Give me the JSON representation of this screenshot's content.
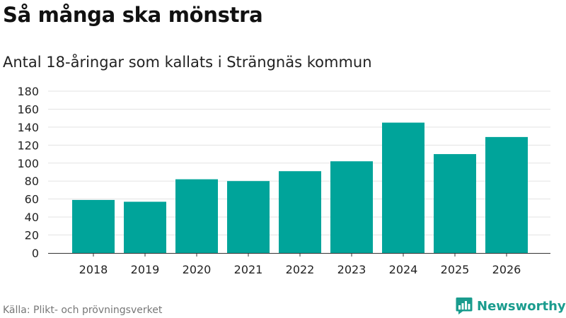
{
  "title": "Så många ska mönstra",
  "subtitle": "Antal 18-åringar som kallats i Strängnäs kommun",
  "source": "Källa: Plikt- och prövningsverket",
  "brand": {
    "name": "Newsworthy",
    "icon": "newsworthy-logo-icon"
  },
  "colors": {
    "bar": "#00a49a",
    "grid": "#e3e3e3",
    "axis": "#333333",
    "brand": "#1a9c8e"
  },
  "chart_data": {
    "type": "bar",
    "title": "Så många ska mönstra",
    "subtitle": "Antal 18-åringar som kallats i Strängnäs kommun",
    "xlabel": "",
    "ylabel": "",
    "categories": [
      "2018",
      "2019",
      "2020",
      "2021",
      "2022",
      "2023",
      "2024",
      "2025",
      "2026"
    ],
    "values": [
      59,
      57,
      82,
      80,
      91,
      102,
      145,
      110,
      129
    ],
    "ylim": [
      0,
      180
    ],
    "yticks": [
      0,
      20,
      40,
      60,
      80,
      100,
      120,
      140,
      160,
      180
    ],
    "grid": true,
    "legend": "none"
  }
}
